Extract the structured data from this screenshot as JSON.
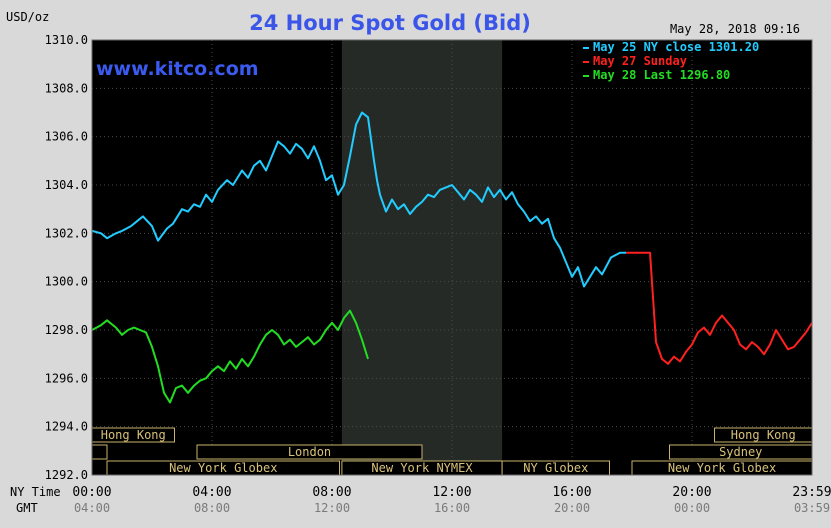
{
  "chart_data": {
    "type": "line",
    "title": "24 Hour Spot Gold (Bid)",
    "watermark": "www.kitco.com",
    "timestamp": "May 28, 2018 09:16",
    "y_unit_label": "USD/oz",
    "ylim": [
      1292.0,
      1310.0
    ],
    "y_ticks": [
      "1310.0",
      "1308.0",
      "1306.0",
      "1304.0",
      "1302.0",
      "1300.0",
      "1298.0",
      "1296.0",
      "1294.0",
      "1292.0"
    ],
    "x_row_labels": {
      "ny": "NY Time",
      "gmt": "GMT"
    },
    "x_ticks_ny": [
      "00:00",
      "04:00",
      "08:00",
      "12:00",
      "16:00",
      "20:00",
      "23:59"
    ],
    "x_ticks_gmt": [
      "04:00",
      "08:00",
      "12:00",
      "16:00",
      "20:00",
      "00:00",
      "03:59"
    ],
    "xlim_hours": [
      0,
      24
    ],
    "highlight_band_hours": [
      8.33,
      13.67
    ],
    "grid": true,
    "legend_position": "top-right",
    "legend": [
      {
        "label": "May 25 NY close 1301.20",
        "color": "#22ccff"
      },
      {
        "label": "May 27 Sunday",
        "color": "#ff2020"
      },
      {
        "label": "May 28 Last 1296.80",
        "color": "#22dd22"
      }
    ],
    "series": [
      {
        "name": "May 25 NY close 1301.20",
        "color": "#22ccff",
        "x": [
          0,
          0.3,
          0.5,
          0.8,
          1,
          1.3,
          1.5,
          1.7,
          2,
          2.2,
          2.5,
          2.7,
          3,
          3.2,
          3.4,
          3.6,
          3.8,
          4,
          4.2,
          4.5,
          4.7,
          5,
          5.2,
          5.4,
          5.6,
          5.8,
          6,
          6.2,
          6.4,
          6.6,
          6.8,
          7,
          7.2,
          7.4,
          7.6,
          7.8,
          8,
          8.2,
          8.4,
          8.6,
          8.8,
          9,
          9.2,
          9.4,
          9.5,
          9.6,
          9.8,
          10,
          10.2,
          10.4,
          10.6,
          10.8,
          11,
          11.2,
          11.4,
          11.6,
          11.8,
          12,
          12.2,
          12.4,
          12.6,
          12.8,
          13,
          13.2,
          13.4,
          13.6,
          13.8,
          14,
          14.2,
          14.4,
          14.6,
          14.8,
          15,
          15.2,
          15.4,
          15.6,
          15.8,
          16,
          16.2,
          16.4,
          16.6,
          16.8,
          17,
          17.3,
          17.6,
          17.8
        ],
        "values": [
          1302.1,
          1302.0,
          1301.8,
          1302.0,
          1302.1,
          1302.3,
          1302.5,
          1302.7,
          1302.3,
          1301.7,
          1302.2,
          1302.4,
          1303.0,
          1302.9,
          1303.2,
          1303.1,
          1303.6,
          1303.3,
          1303.8,
          1304.2,
          1304.0,
          1304.6,
          1304.3,
          1304.8,
          1305.0,
          1304.6,
          1305.2,
          1305.8,
          1305.6,
          1305.3,
          1305.7,
          1305.5,
          1305.1,
          1305.6,
          1305.0,
          1304.2,
          1304.4,
          1303.6,
          1304.0,
          1305.2,
          1306.5,
          1307.0,
          1306.8,
          1305.0,
          1304.2,
          1303.6,
          1302.9,
          1303.4,
          1303.0,
          1303.2,
          1302.8,
          1303.1,
          1303.3,
          1303.6,
          1303.5,
          1303.8,
          1303.9,
          1304.0,
          1303.7,
          1303.4,
          1303.8,
          1303.6,
          1303.3,
          1303.9,
          1303.5,
          1303.8,
          1303.4,
          1303.7,
          1303.2,
          1302.9,
          1302.5,
          1302.7,
          1302.4,
          1302.6,
          1301.8,
          1301.4,
          1300.8,
          1300.2,
          1300.6,
          1299.8,
          1300.2,
          1300.6,
          1300.3,
          1301.0,
          1301.2,
          1301.2
        ]
      },
      {
        "name": "May 27 Sunday",
        "color": "#ff2020",
        "x": [
          17.8,
          18.2,
          18.6,
          18.8,
          19,
          19.2,
          19.4,
          19.6,
          19.8,
          20,
          20.2,
          20.4,
          20.6,
          20.8,
          21,
          21.2,
          21.4,
          21.6,
          21.8,
          22,
          22.2,
          22.4,
          22.6,
          22.8,
          23,
          23.2,
          23.4,
          23.6,
          23.8,
          24
        ],
        "values": [
          1301.2,
          1301.2,
          1301.2,
          1297.5,
          1296.8,
          1296.6,
          1296.9,
          1296.7,
          1297.1,
          1297.4,
          1297.9,
          1298.1,
          1297.8,
          1298.3,
          1298.6,
          1298.3,
          1298.0,
          1297.4,
          1297.2,
          1297.5,
          1297.3,
          1297.0,
          1297.4,
          1298.0,
          1297.6,
          1297.2,
          1297.3,
          1297.6,
          1297.9,
          1298.3
        ]
      },
      {
        "name": "May 28 Last 1296.80",
        "color": "#22dd22",
        "x": [
          0,
          0.3,
          0.5,
          0.8,
          1,
          1.2,
          1.4,
          1.6,
          1.8,
          2,
          2.2,
          2.4,
          2.6,
          2.8,
          3,
          3.2,
          3.4,
          3.6,
          3.8,
          4,
          4.2,
          4.4,
          4.6,
          4.8,
          5,
          5.2,
          5.4,
          5.6,
          5.8,
          6,
          6.2,
          6.4,
          6.6,
          6.8,
          7,
          7.2,
          7.4,
          7.6,
          7.8,
          8,
          8.2,
          8.4,
          8.6,
          8.8,
          9,
          9.2
        ],
        "values": [
          1298.0,
          1298.2,
          1298.4,
          1298.1,
          1297.8,
          1298.0,
          1298.1,
          1298.0,
          1297.9,
          1297.3,
          1296.5,
          1295.4,
          1295.0,
          1295.6,
          1295.7,
          1295.4,
          1295.7,
          1295.9,
          1296.0,
          1296.3,
          1296.5,
          1296.3,
          1296.7,
          1296.4,
          1296.8,
          1296.5,
          1296.9,
          1297.4,
          1297.8,
          1298.0,
          1297.8,
          1297.4,
          1297.6,
          1297.3,
          1297.5,
          1297.7,
          1297.4,
          1297.6,
          1298.0,
          1298.3,
          1298.0,
          1298.5,
          1298.8,
          1298.3,
          1297.6,
          1296.8
        ]
      }
    ],
    "sessions": [
      {
        "label": "Hong Kong",
        "start_hour": 0,
        "end_hour": 2.75,
        "row": 0
      },
      {
        "label": "",
        "start_hour": 0,
        "end_hour": 0.5,
        "row": 1
      },
      {
        "label": "London",
        "start_hour": 3.5,
        "end_hour": 11.0,
        "row": 1
      },
      {
        "label": "New York Globex",
        "start_hour": 0.5,
        "end_hour": 8.25,
        "row": 2
      },
      {
        "label": "New York NYMEX",
        "start_hour": 8.33,
        "end_hour": 13.67,
        "row": 2
      },
      {
        "label": "NY Globex",
        "start_hour": 13.67,
        "end_hour": 17.25,
        "row": 2
      },
      {
        "label": "Hong Kong",
        "start_hour": 20.75,
        "end_hour": 24,
        "row": 0
      },
      {
        "label": "Sydney",
        "start_hour": 19.25,
        "end_hour": 24,
        "row": 1
      },
      {
        "label": "New York Globex",
        "start_hour": 18.0,
        "end_hour": 24,
        "row": 2
      }
    ]
  }
}
